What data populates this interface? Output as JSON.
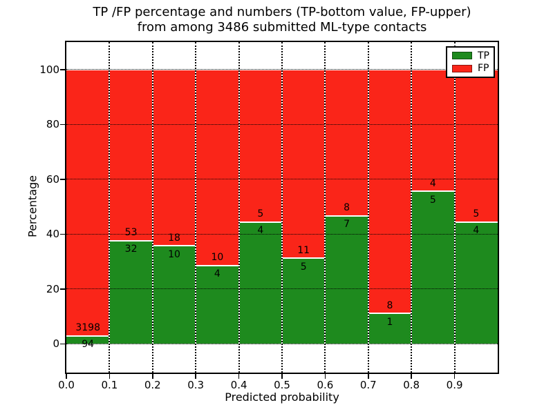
{
  "figure": {
    "background": "#ffffff"
  },
  "chart_data": {
    "type": "bar",
    "stacked": true,
    "normalized_to_percent": true,
    "title_lines": [
      "TP /FP percentage and numbers (TP-bottom value, FP-upper)",
      "from among 3486 submitted ML-type contacts"
    ],
    "title": "TP /FP percentage and numbers (TP-bottom value, FP-upper)\nfrom among 3486 submitted ML-type contacts",
    "xlabel": "Predicted probability",
    "ylabel": "Percentage",
    "total_contacts": 3486,
    "x_bins": [
      "0.0",
      "0.1",
      "0.2",
      "0.3",
      "0.4",
      "0.5",
      "0.6",
      "0.7",
      "0.8",
      "0.9"
    ],
    "bin_width": 0.1,
    "series": [
      {
        "name": "TP",
        "color": "#1e8a1e",
        "counts": [
          94,
          32,
          10,
          4,
          4,
          5,
          7,
          1,
          5,
          4
        ]
      },
      {
        "name": "FP",
        "color": "#fa2519",
        "counts": [
          3198,
          53,
          18,
          10,
          5,
          11,
          8,
          8,
          4,
          5
        ]
      }
    ],
    "bar_labels_note": "TP count printed below stack boundary, FP count printed above stack boundary",
    "x_ticks": [
      "0.0",
      "0.1",
      "0.2",
      "0.3",
      "0.4",
      "0.5",
      "0.6",
      "0.7",
      "0.8",
      "0.9"
    ],
    "y_ticks": [
      0,
      20,
      40,
      60,
      80,
      100
    ],
    "xlim": [
      0.0,
      1.0
    ],
    "ylim": [
      -10.5,
      110
    ],
    "grid": true,
    "grid_style": "dotted",
    "legend": {
      "position": "upper right",
      "entries": [
        {
          "label": "TP",
          "color": "#1e8a1e"
        },
        {
          "label": "FP",
          "color": "#fa2519"
        }
      ]
    },
    "colors": {
      "tp_green": "#1e8a1e",
      "fp_red": "#fa2519",
      "text": "#000000",
      "background": "#ffffff"
    }
  }
}
